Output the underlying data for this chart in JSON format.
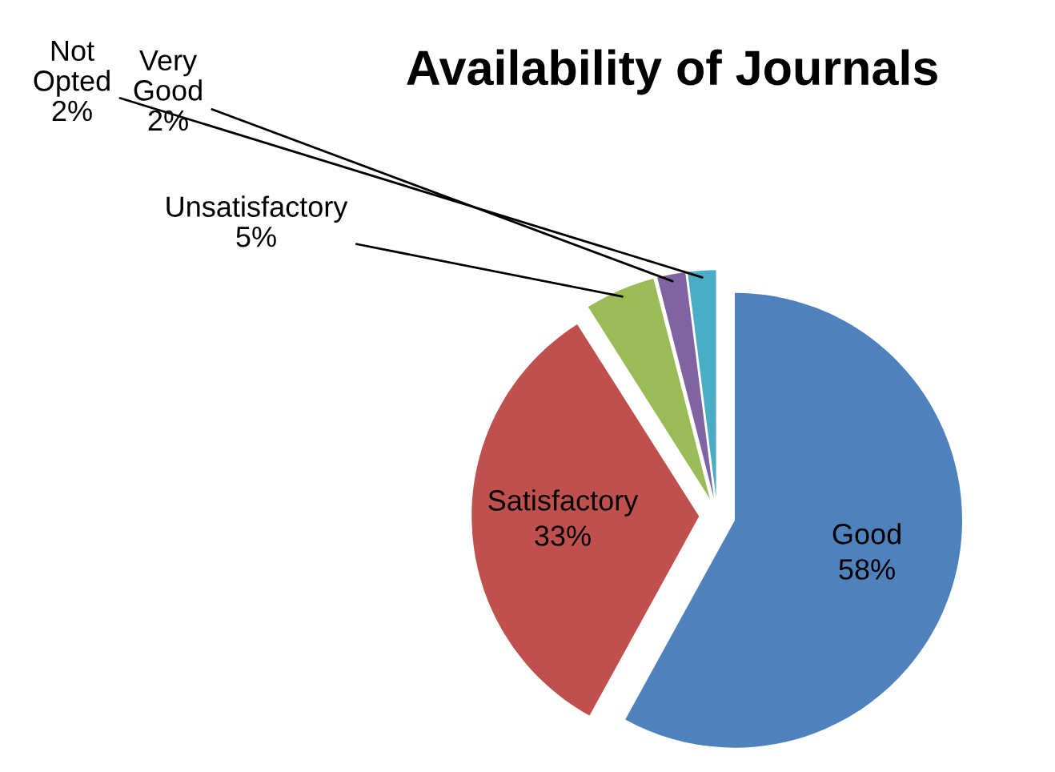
{
  "chart_data": {
    "type": "pie",
    "title": "Availability of Journals",
    "categories": [
      "Good",
      "Satisfactory",
      "Unsatisfactory",
      "Very Good",
      "Not Opted"
    ],
    "values": [
      58,
      33,
      5,
      2,
      2
    ],
    "value_labels": [
      "58%",
      "33%",
      "5%",
      "2%",
      "2%"
    ],
    "colors": [
      "#4f81bd",
      "#c0504d",
      "#9bbb59",
      "#8064a2",
      "#4bacc6"
    ],
    "legend": false
  }
}
